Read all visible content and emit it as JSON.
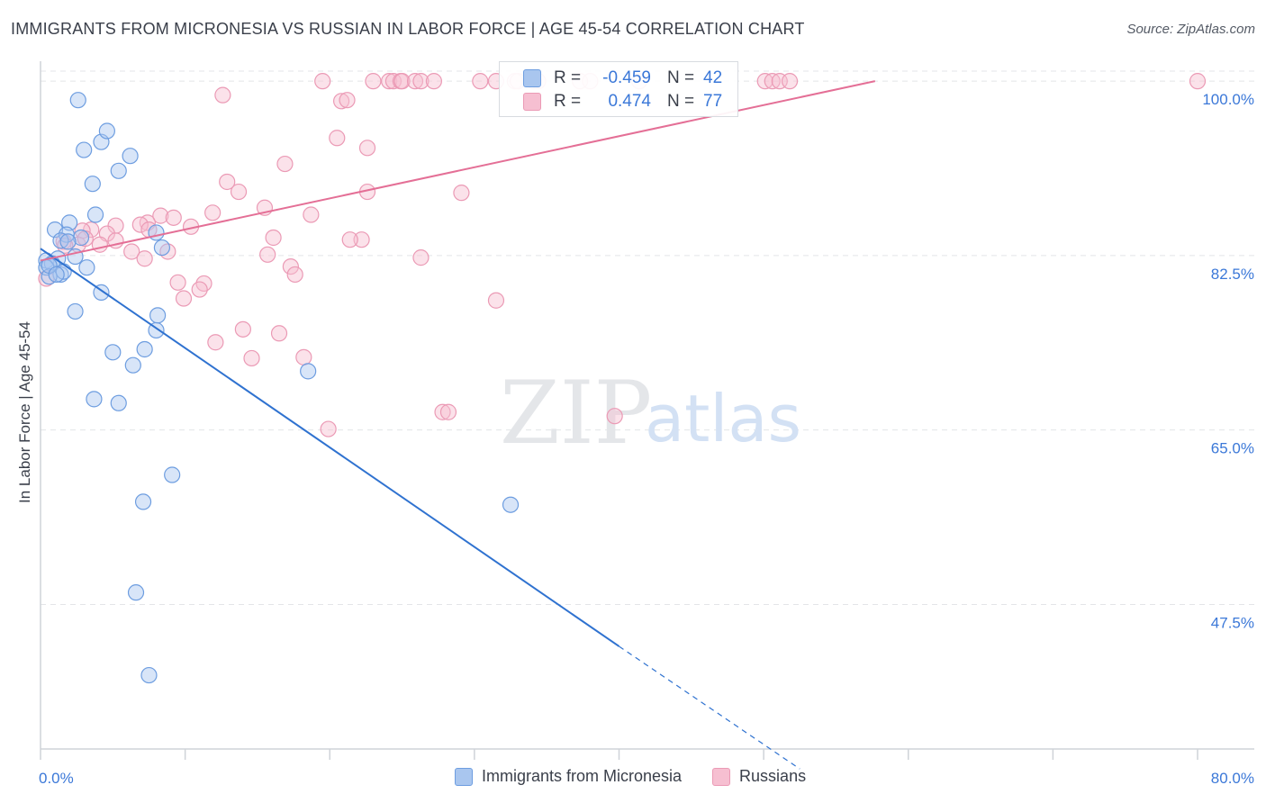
{
  "title": "IMMIGRANTS FROM MICRONESIA VS RUSSIAN IN LABOR FORCE | AGE 45-54 CORRELATION CHART",
  "source": "Source: ZipAtlas.com",
  "watermark": {
    "zip": "ZIP",
    "atlas": "atlas"
  },
  "stats": [
    {
      "series": "Immigrants from Micronesia",
      "r_label": "R =",
      "r": "-0.459",
      "n_label": "N =",
      "n": "42"
    },
    {
      "series": "Russians",
      "r_label": "R =",
      "r": "0.474",
      "n_label": "N =",
      "n": "77"
    }
  ],
  "legend": [
    {
      "label": "Immigrants from Micronesia"
    },
    {
      "label": "Russians"
    }
  ],
  "colors": {
    "blue_fill": "#a9c6ef",
    "blue_stroke": "#6d9de0",
    "blue_line": "#2f72d0",
    "pink_fill": "#f6bfd1",
    "pink_stroke": "#eb9ab5",
    "pink_line": "#e46f96",
    "axis_text": "#3b78d8",
    "grid": "#e3e5e8"
  },
  "chart_data": {
    "type": "scatter",
    "title": "IMMIGRANTS FROM MICRONESIA VS RUSSIAN IN LABOR FORCE | AGE 45-54 CORRELATION CHART",
    "xlabel": "",
    "ylabel": "In Labor Force | Age 45-54",
    "xlim": [
      0,
      80
    ],
    "ylim": [
      33,
      102
    ],
    "x_tick_labels": [
      {
        "value": 0,
        "label": "0.0%"
      },
      {
        "value": 80,
        "label": "80.0%"
      }
    ],
    "y_ticks": [
      {
        "value": 100,
        "label": "100.0%"
      },
      {
        "value": 82.5,
        "label": "82.5%"
      },
      {
        "value": 65,
        "label": "65.0%"
      },
      {
        "value": 47.5,
        "label": "47.5%"
      }
    ],
    "series": [
      {
        "name": "Immigrants from Micronesia",
        "color": "blue",
        "points": [
          [
            2.6,
            98.1
          ],
          [
            3.0,
            93.1
          ],
          [
            4.2,
            93.9
          ],
          [
            4.6,
            95.0
          ],
          [
            6.2,
            92.5
          ],
          [
            5.4,
            91.0
          ],
          [
            3.6,
            89.7
          ],
          [
            3.8,
            86.6
          ],
          [
            1.0,
            85.1
          ],
          [
            2.0,
            85.8
          ],
          [
            1.8,
            84.6
          ],
          [
            1.4,
            84.0
          ],
          [
            2.8,
            84.3
          ],
          [
            8.0,
            84.8
          ],
          [
            8.4,
            83.3
          ],
          [
            0.4,
            82.0
          ],
          [
            1.2,
            82.2
          ],
          [
            2.4,
            82.4
          ],
          [
            0.8,
            81.7
          ],
          [
            0.4,
            81.3
          ],
          [
            1.4,
            80.6
          ],
          [
            1.6,
            80.9
          ],
          [
            3.2,
            81.3
          ],
          [
            0.6,
            80.4
          ],
          [
            4.2,
            78.8
          ],
          [
            2.4,
            76.9
          ],
          [
            8.1,
            76.5
          ],
          [
            8.0,
            75.0
          ],
          [
            7.2,
            73.1
          ],
          [
            5.0,
            72.8
          ],
          [
            6.4,
            71.5
          ],
          [
            18.5,
            70.9
          ],
          [
            3.7,
            68.1
          ],
          [
            5.4,
            67.7
          ],
          [
            9.1,
            60.5
          ],
          [
            7.1,
            57.8
          ],
          [
            32.5,
            57.5
          ],
          [
            6.6,
            48.7
          ],
          [
            7.5,
            40.4
          ],
          [
            0.6,
            81.5
          ],
          [
            1.9,
            83.9
          ],
          [
            1.1,
            80.6
          ]
        ],
        "trend": {
          "x1": 0,
          "y1": 83.2,
          "x2": 40,
          "y2": 43.3,
          "dash_to_x": 52.5,
          "dash_to_y": 31.0
        }
      },
      {
        "name": "Russians",
        "color": "pink",
        "points": [
          [
            19.5,
            100.0
          ],
          [
            23.0,
            100.0
          ],
          [
            24.1,
            100.0
          ],
          [
            24.4,
            100.0
          ],
          [
            24.9,
            100.0
          ],
          [
            25.0,
            100.0
          ],
          [
            25.9,
            100.0
          ],
          [
            26.3,
            100.0
          ],
          [
            27.2,
            100.0
          ],
          [
            30.4,
            100.0
          ],
          [
            31.5,
            100.0
          ],
          [
            32.8,
            100.0
          ],
          [
            33.0,
            100.0
          ],
          [
            34.4,
            100.0
          ],
          [
            37.3,
            100.0
          ],
          [
            38.0,
            100.0
          ],
          [
            41.4,
            100.0
          ],
          [
            50.1,
            100.0
          ],
          [
            50.6,
            100.0
          ],
          [
            51.1,
            100.0
          ],
          [
            51.8,
            100.0
          ],
          [
            80.0,
            100.0
          ],
          [
            34.1,
            100.0
          ],
          [
            12.6,
            98.6
          ],
          [
            20.8,
            98.0
          ],
          [
            21.2,
            98.1
          ],
          [
            20.5,
            94.3
          ],
          [
            22.6,
            93.3
          ],
          [
            16.9,
            91.7
          ],
          [
            12.9,
            89.9
          ],
          [
            13.7,
            88.9
          ],
          [
            22.6,
            88.9
          ],
          [
            29.1,
            88.8
          ],
          [
            15.5,
            87.3
          ],
          [
            11.9,
            86.8
          ],
          [
            18.7,
            86.6
          ],
          [
            8.3,
            86.5
          ],
          [
            9.2,
            86.3
          ],
          [
            7.4,
            85.8
          ],
          [
            6.9,
            85.6
          ],
          [
            5.2,
            85.5
          ],
          [
            10.4,
            85.4
          ],
          [
            3.5,
            85.1
          ],
          [
            7.5,
            85.1
          ],
          [
            2.9,
            85.0
          ],
          [
            4.6,
            84.7
          ],
          [
            16.1,
            84.3
          ],
          [
            22.2,
            84.1
          ],
          [
            21.4,
            84.1
          ],
          [
            5.2,
            84.0
          ],
          [
            1.6,
            83.9
          ],
          [
            2.6,
            83.6
          ],
          [
            4.1,
            83.6
          ],
          [
            6.3,
            82.9
          ],
          [
            15.7,
            82.6
          ],
          [
            26.3,
            82.3
          ],
          [
            7.2,
            82.2
          ],
          [
            17.3,
            81.4
          ],
          [
            17.6,
            80.6
          ],
          [
            9.5,
            79.8
          ],
          [
            11.3,
            79.7
          ],
          [
            11.0,
            79.1
          ],
          [
            9.9,
            78.2
          ],
          [
            31.5,
            78.0
          ],
          [
            14.0,
            75.1
          ],
          [
            16.5,
            74.7
          ],
          [
            12.1,
            73.8
          ],
          [
            14.6,
            72.2
          ],
          [
            18.2,
            72.3
          ],
          [
            27.8,
            66.8
          ],
          [
            28.2,
            66.8
          ],
          [
            39.7,
            66.4
          ],
          [
            19.9,
            65.1
          ],
          [
            1.7,
            83.5
          ],
          [
            3.1,
            84.2
          ],
          [
            8.8,
            82.9
          ],
          [
            0.4,
            80.2
          ]
        ],
        "trend": {
          "x1": 0,
          "y1": 82.0,
          "x2": 57.7,
          "y2": 100.0
        }
      }
    ]
  }
}
